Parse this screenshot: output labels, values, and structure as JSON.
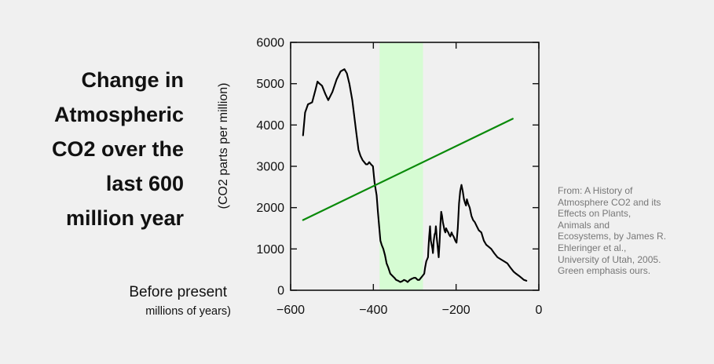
{
  "title": "Change in\nAtmospheric\nCO2 over the\nlast 600\nmillion year",
  "source_note": "From:  A History of\nAtmosphere CO2 and its\nEffects on Plants,\nAnimals and\nEcosystems, by James R.\nEhleringer et al.,\nUniversity of Utah, 2005.\nGreen emphasis ours.",
  "chart_data": {
    "type": "line",
    "title": "",
    "xlabel": "Before present",
    "xlabel_sub": "millions of years)",
    "ylabel": "(CO2 parts per million)",
    "xlim": [
      -600,
      0
    ],
    "ylim": [
      0,
      6000
    ],
    "x_ticks": [
      -600,
      -400,
      -200,
      0
    ],
    "x_tick_labels": [
      "−600",
      "−400",
      "−200",
      "0"
    ],
    "y_ticks": [
      0,
      1000,
      2000,
      3000,
      4000,
      5000,
      6000
    ],
    "y_tick_labels": [
      "0",
      "1000",
      "2000",
      "3000",
      "4000",
      "5000",
      "6000"
    ],
    "grid": false,
    "highlight_band": {
      "x_range": [
        -385,
        -280
      ],
      "color": "#d6fcd3"
    },
    "series": [
      {
        "color": "#000000",
        "x": [
          -570,
          -565,
          -558,
          -548,
          -540,
          -535,
          -530,
          -524,
          -516,
          -509,
          -499,
          -489,
          -479,
          -470,
          -464,
          -458,
          -451,
          -446,
          -441,
          -436,
          -431,
          -426,
          -422,
          -418,
          -414,
          -410,
          -406,
          -401,
          -397,
          -392,
          -389,
          -386,
          -383,
          -380,
          -376,
          -372,
          -368,
          -364,
          -359,
          -354,
          -349,
          -345,
          -340,
          -335,
          -330,
          -326,
          -321,
          -317,
          -312,
          -307,
          -302,
          -298,
          -293,
          -289,
          -285,
          -281,
          -277,
          -275,
          -273,
          -272,
          -270,
          -268,
          -267,
          -265,
          -263,
          -261,
          -259,
          -257,
          -256,
          -255,
          -254,
          -252,
          -250,
          -249,
          -248,
          -247,
          -246,
          -245,
          -244,
          -243,
          -242,
          -240,
          -238,
          -236,
          -234,
          -232,
          -230,
          -228,
          -226,
          -224,
          -222,
          -219,
          -217,
          -214,
          -211,
          -209,
          -206,
          -204,
          -202,
          -199,
          -196,
          -193,
          -190,
          -187,
          -184,
          -181,
          -178,
          -176,
          -174,
          -171,
          -167,
          -163,
          -159,
          -155,
          -150,
          -145,
          -139,
          -133,
          -127,
          -121,
          -115,
          -108,
          -100,
          -92,
          -84,
          -76,
          -69,
          -61,
          -55,
          -48,
          -42,
          -36,
          -30
        ],
        "y": [
          3750,
          4300,
          4500,
          4550,
          4850,
          5050,
          5000,
          4950,
          4750,
          4600,
          4800,
          5100,
          5300,
          5350,
          5250,
          5000,
          4600,
          4200,
          3800,
          3400,
          3250,
          3150,
          3100,
          3050,
          3050,
          3100,
          3050,
          3000,
          2600,
          2300,
          1900,
          1550,
          1200,
          1100,
          1000,
          850,
          650,
          550,
          400,
          350,
          300,
          250,
          230,
          200,
          220,
          250,
          230,
          200,
          250,
          280,
          300,
          300,
          250,
          250,
          300,
          350,
          400,
          550,
          650,
          700,
          750,
          800,
          1000,
          1300,
          1550,
          1200,
          1100,
          1000,
          900,
          1050,
          1200,
          1350,
          1400,
          1550,
          1450,
          1300,
          1200,
          1100,
          1000,
          900,
          800,
          1150,
          1600,
          1900,
          1800,
          1650,
          1550,
          1450,
          1400,
          1500,
          1450,
          1400,
          1350,
          1300,
          1400,
          1350,
          1300,
          1250,
          1200,
          1150,
          1500,
          2100,
          2400,
          2550,
          2400,
          2200,
          2100,
          2050,
          2200,
          2100,
          2000,
          1800,
          1700,
          1650,
          1550,
          1450,
          1400,
          1200,
          1100,
          1050,
          1000,
          900,
          800,
          750,
          700,
          650,
          550,
          450,
          400,
          350,
          300,
          250,
          230
        ]
      },
      {
        "color": "#0a8a0a",
        "x": [
          -570,
          -63
        ],
        "y": [
          1700,
          4150
        ]
      }
    ]
  }
}
